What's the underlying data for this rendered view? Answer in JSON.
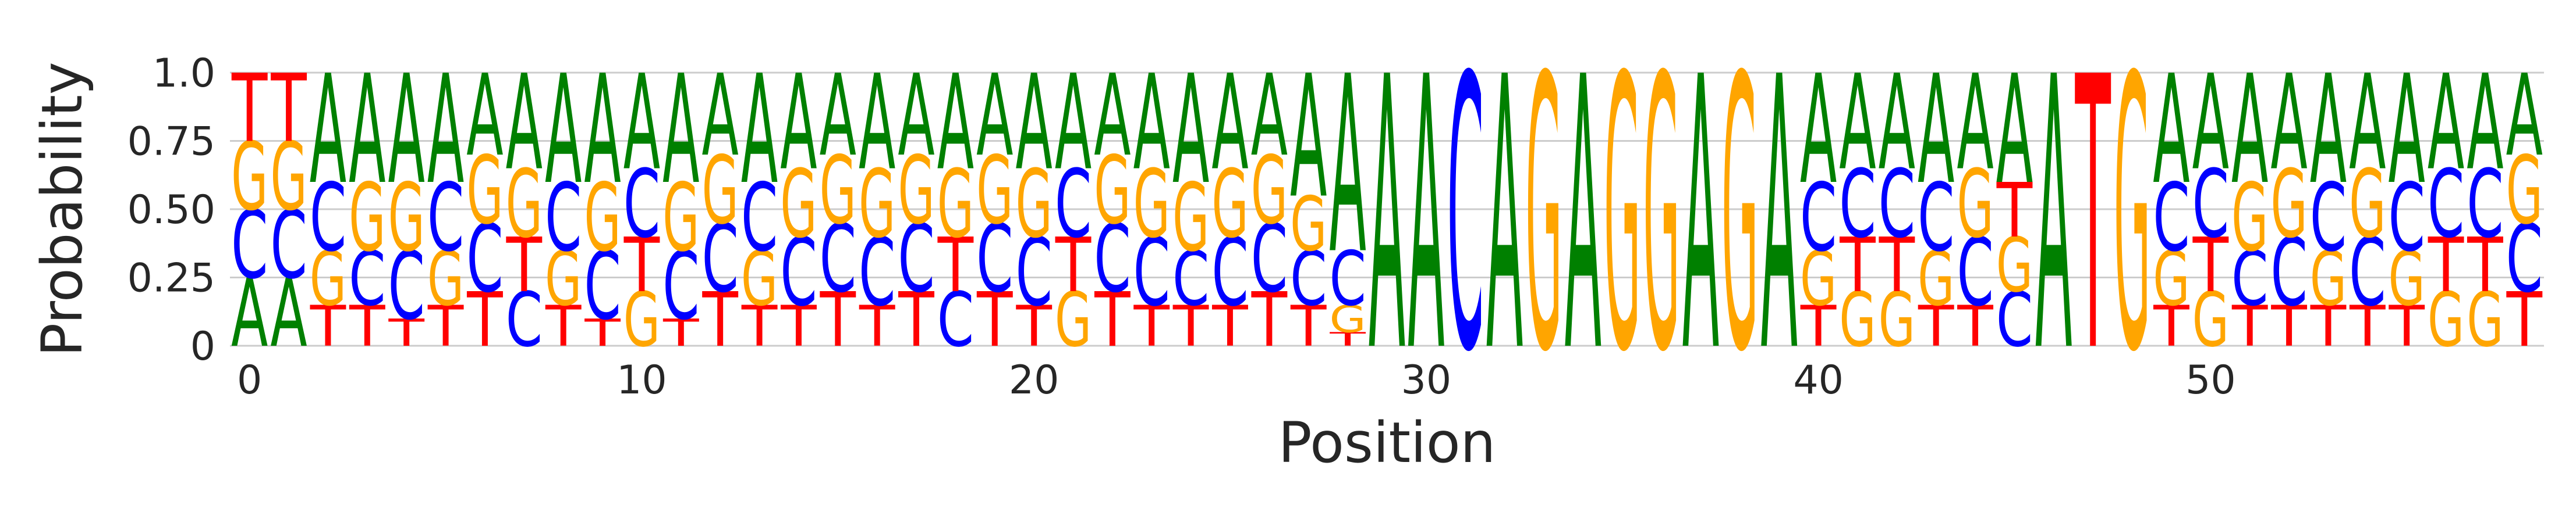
{
  "chart_data": {
    "type": "sequence-logo",
    "title": "",
    "xlabel": "Position",
    "ylabel": "Probability",
    "ylim": [
      0,
      1
    ],
    "yticks": [
      0,
      0.25,
      0.5,
      0.75,
      1.0
    ],
    "ytick_labels": [
      "0",
      "0.25",
      "0.50",
      "0.75",
      "1.0"
    ],
    "xticks": [
      0,
      10,
      20,
      30,
      40,
      50
    ],
    "xtick_labels": [
      "0",
      "10",
      "20",
      "30",
      "40",
      "50"
    ],
    "xlim": [
      -0.5,
      58.5
    ],
    "grid": "horizontal",
    "letter_colors": {
      "A": "#008000",
      "C": "#0000ff",
      "G": "#ffa500",
      "T": "#ff0000"
    },
    "positions": [
      {
        "pos": 0,
        "A": 0.25,
        "C": 0.25,
        "G": 0.25,
        "T": 0.25
      },
      {
        "pos": 1,
        "A": 0.25,
        "C": 0.25,
        "G": 0.25,
        "T": 0.25
      },
      {
        "pos": 2,
        "A": 0.4,
        "C": 0.25,
        "G": 0.2,
        "T": 0.15
      },
      {
        "pos": 3,
        "A": 0.4,
        "C": 0.2,
        "G": 0.25,
        "T": 0.15
      },
      {
        "pos": 4,
        "A": 0.4,
        "C": 0.25,
        "G": 0.25,
        "T": 0.1
      },
      {
        "pos": 5,
        "A": 0.4,
        "C": 0.25,
        "G": 0.2,
        "T": 0.15
      },
      {
        "pos": 6,
        "A": 0.3,
        "C": 0.25,
        "G": 0.25,
        "T": 0.2
      },
      {
        "pos": 7,
        "A": 0.35,
        "C": 0.2,
        "G": 0.25,
        "T": 0.2
      },
      {
        "pos": 8,
        "A": 0.4,
        "C": 0.25,
        "G": 0.2,
        "T": 0.15
      },
      {
        "pos": 9,
        "A": 0.4,
        "C": 0.25,
        "G": 0.25,
        "T": 0.1
      },
      {
        "pos": 10,
        "A": 0.35,
        "C": 0.25,
        "G": 0.2,
        "T": 0.2
      },
      {
        "pos": 11,
        "A": 0.4,
        "C": 0.25,
        "G": 0.25,
        "T": 0.1
      },
      {
        "pos": 12,
        "A": 0.3,
        "C": 0.25,
        "G": 0.25,
        "T": 0.2
      },
      {
        "pos": 13,
        "A": 0.4,
        "C": 0.25,
        "G": 0.2,
        "T": 0.15
      },
      {
        "pos": 14,
        "A": 0.35,
        "C": 0.25,
        "G": 0.25,
        "T": 0.15
      },
      {
        "pos": 15,
        "A": 0.3,
        "C": 0.25,
        "G": 0.25,
        "T": 0.2
      },
      {
        "pos": 16,
        "A": 0.35,
        "C": 0.25,
        "G": 0.25,
        "T": 0.15
      },
      {
        "pos": 17,
        "A": 0.3,
        "C": 0.25,
        "G": 0.25,
        "T": 0.2
      },
      {
        "pos": 18,
        "A": 0.35,
        "C": 0.2,
        "G": 0.25,
        "T": 0.2
      },
      {
        "pos": 19,
        "A": 0.3,
        "C": 0.25,
        "G": 0.25,
        "T": 0.2
      },
      {
        "pos": 20,
        "A": 0.35,
        "C": 0.25,
        "G": 0.25,
        "T": 0.15
      },
      {
        "pos": 21,
        "A": 0.35,
        "C": 0.25,
        "G": 0.2,
        "T": 0.2
      },
      {
        "pos": 22,
        "A": 0.3,
        "C": 0.25,
        "G": 0.25,
        "T": 0.2
      },
      {
        "pos": 23,
        "A": 0.35,
        "C": 0.25,
        "G": 0.25,
        "T": 0.15
      },
      {
        "pos": 24,
        "A": 0.4,
        "C": 0.2,
        "G": 0.25,
        "T": 0.15
      },
      {
        "pos": 25,
        "A": 0.35,
        "C": 0.25,
        "G": 0.25,
        "T": 0.15
      },
      {
        "pos": 26,
        "A": 0.3,
        "C": 0.25,
        "G": 0.25,
        "T": 0.2
      },
      {
        "pos": 27,
        "A": 0.45,
        "C": 0.2,
        "G": 0.2,
        "T": 0.15
      },
      {
        "pos": 28,
        "A": 0.65,
        "C": 0.2,
        "G": 0.1,
        "T": 0.05
      },
      {
        "pos": 29,
        "A": 1.0,
        "C": 0.0,
        "G": 0.0,
        "T": 0.0
      },
      {
        "pos": 30,
        "A": 1.0,
        "C": 0.0,
        "G": 0.0,
        "T": 0.0
      },
      {
        "pos": 31,
        "A": 0.0,
        "C": 1.0,
        "G": 0.0,
        "T": 0.0
      },
      {
        "pos": 32,
        "A": 1.0,
        "C": 0.0,
        "G": 0.0,
        "T": 0.0
      },
      {
        "pos": 33,
        "A": 0.0,
        "C": 0.0,
        "G": 1.0,
        "T": 0.0
      },
      {
        "pos": 34,
        "A": 1.0,
        "C": 0.0,
        "G": 0.0,
        "T": 0.0
      },
      {
        "pos": 35,
        "A": 0.0,
        "C": 0.0,
        "G": 1.0,
        "T": 0.0
      },
      {
        "pos": 36,
        "A": 0.0,
        "C": 0.0,
        "G": 1.0,
        "T": 0.0
      },
      {
        "pos": 37,
        "A": 1.0,
        "C": 0.0,
        "G": 0.0,
        "T": 0.0
      },
      {
        "pos": 38,
        "A": 0.0,
        "C": 0.0,
        "G": 1.0,
        "T": 0.0
      },
      {
        "pos": 39,
        "A": 1.0,
        "C": 0.0,
        "G": 0.0,
        "T": 0.0
      },
      {
        "pos": 40,
        "A": 0.4,
        "C": 0.25,
        "G": 0.2,
        "T": 0.15
      },
      {
        "pos": 41,
        "A": 0.35,
        "C": 0.25,
        "G": 0.2,
        "T": 0.2
      },
      {
        "pos": 42,
        "A": 0.35,
        "C": 0.25,
        "G": 0.2,
        "T": 0.2
      },
      {
        "pos": 43,
        "A": 0.4,
        "C": 0.25,
        "G": 0.2,
        "T": 0.15
      },
      {
        "pos": 44,
        "A": 0.35,
        "C": 0.25,
        "G": 0.25,
        "T": 0.15
      },
      {
        "pos": 45,
        "A": 0.4,
        "C": 0.2,
        "G": 0.2,
        "T": 0.2
      },
      {
        "pos": 46,
        "A": 1.0,
        "C": 0.0,
        "G": 0.0,
        "T": 0.0
      },
      {
        "pos": 47,
        "A": 0.0,
        "C": 0.0,
        "G": 0.0,
        "T": 1.0
      },
      {
        "pos": 48,
        "A": 0.0,
        "C": 0.0,
        "G": 1.0,
        "T": 0.0
      },
      {
        "pos": 49,
        "A": 0.4,
        "C": 0.25,
        "G": 0.2,
        "T": 0.15
      },
      {
        "pos": 50,
        "A": 0.35,
        "C": 0.25,
        "G": 0.2,
        "T": 0.2
      },
      {
        "pos": 51,
        "A": 0.4,
        "C": 0.2,
        "G": 0.25,
        "T": 0.15
      },
      {
        "pos": 52,
        "A": 0.35,
        "C": 0.25,
        "G": 0.25,
        "T": 0.15
      },
      {
        "pos": 53,
        "A": 0.4,
        "C": 0.25,
        "G": 0.2,
        "T": 0.15
      },
      {
        "pos": 54,
        "A": 0.35,
        "C": 0.25,
        "G": 0.25,
        "T": 0.15
      },
      {
        "pos": 55,
        "A": 0.4,
        "C": 0.25,
        "G": 0.2,
        "T": 0.15
      },
      {
        "pos": 56,
        "A": 0.35,
        "C": 0.25,
        "G": 0.2,
        "T": 0.2
      },
      {
        "pos": 57,
        "A": 0.35,
        "C": 0.25,
        "G": 0.2,
        "T": 0.2
      },
      {
        "pos": 58,
        "A": 0.3,
        "C": 0.25,
        "G": 0.25,
        "T": 0.2
      }
    ]
  }
}
